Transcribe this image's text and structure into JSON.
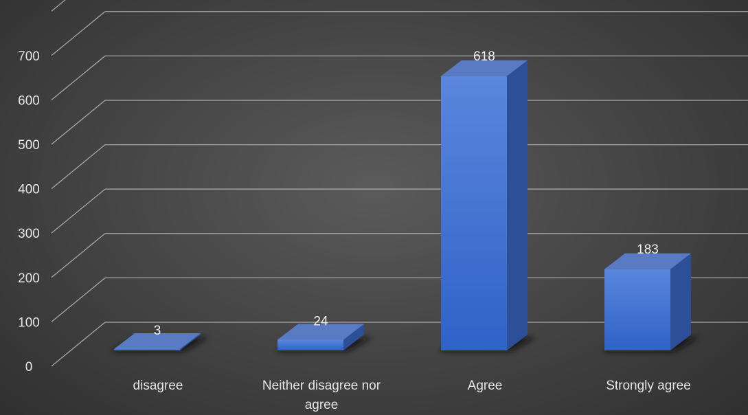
{
  "chart_data": {
    "type": "bar",
    "style": "3d-column",
    "categories": [
      "disagree",
      "Neither disagree nor agree",
      "Agree",
      "Strongly agree"
    ],
    "category_label_lines": [
      [
        "disagree"
      ],
      [
        "Neither disagree nor",
        "agree"
      ],
      [
        "Agree"
      ],
      [
        "Strongly agree"
      ]
    ],
    "values": [
      3,
      24,
      618,
      183
    ],
    "data_labels": [
      "3",
      "24",
      "618",
      "183"
    ],
    "title": "",
    "xlabel": "",
    "ylabel": "",
    "ylim": [
      0,
      800
    ],
    "yticks": [
      0,
      100,
      200,
      300,
      400,
      500,
      600,
      700
    ],
    "ytick_labels": [
      "0",
      "100",
      "200",
      "300",
      "400",
      "500",
      "600",
      "700"
    ],
    "grid": true,
    "legend": "none",
    "colors": {
      "bar_front": "#3f6fd0",
      "bar_top": "#5a7bc4",
      "bar_side": "#2c4f98",
      "grid": "#a8a8a8",
      "text": "#e6e6e6",
      "background": "#4a4a4a"
    }
  }
}
